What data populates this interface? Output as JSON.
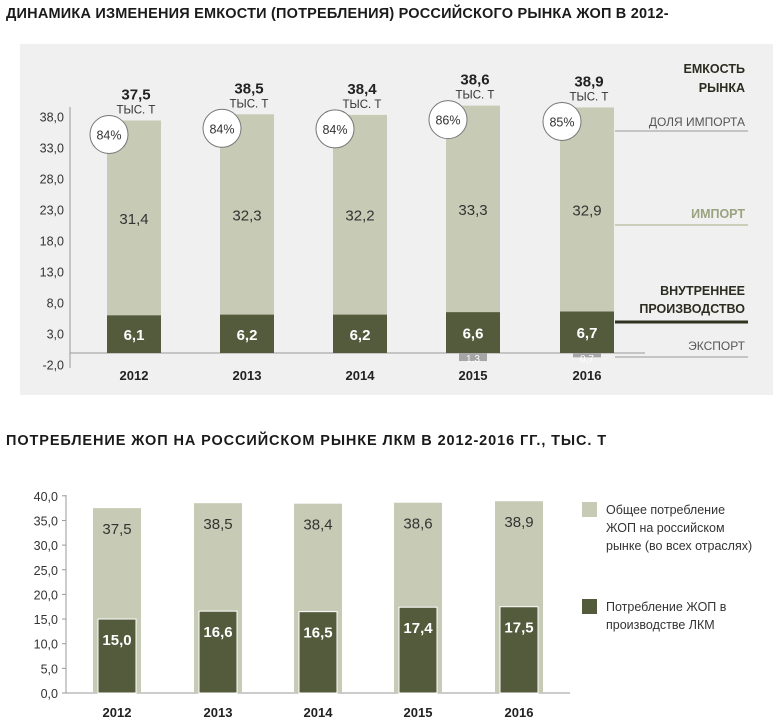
{
  "chart_data": [
    {
      "type": "bar",
      "title": "ДИНАМИКА ИЗМЕНЕНИЯ ЕМКОСТИ (ПОТРЕБЛЕНИЯ) РОССИЙСКОГО РЫНКА ЖОП В 2012-",
      "categories": [
        "2012",
        "2013",
        "2014",
        "2015",
        "2016"
      ],
      "yticks": [
        "38,0",
        "33,0",
        "28,0",
        "23,0",
        "18,0",
        "13,0",
        "8,0",
        "3,0",
        "-2,0"
      ],
      "ylim": [
        -2,
        40
      ],
      "stacked": true,
      "series": [
        {
          "name": "ВНУТРЕННЕЕ ПРОИЗВОДСТВО",
          "values": [
            6.1,
            6.2,
            6.2,
            6.6,
            6.7
          ],
          "labels": [
            "6,1",
            "6,2",
            "6,2",
            "6,6",
            "6,7"
          ]
        },
        {
          "name": "ИМПОРТ",
          "values": [
            31.4,
            32.3,
            32.2,
            33.3,
            32.9
          ],
          "labels": [
            "31,4",
            "32,3",
            "32,2",
            "33,3",
            "32,9"
          ]
        },
        {
          "name": "ЭКСПОРТ",
          "values": [
            0,
            0,
            0,
            -1.3,
            -0.7
          ],
          "labels": [
            "",
            "",
            "",
            "1,3",
            "0,7"
          ]
        }
      ],
      "totals": [
        "37,5",
        "38,5",
        "38,4",
        "38,6",
        "38,9"
      ],
      "total_unit": "ТЫС. Т",
      "import_share": [
        "84%",
        "84%",
        "84%",
        "86%",
        "85%"
      ],
      "labels": {
        "capacity": [
          "ЕМКОСТЬ",
          "РЫНКА"
        ],
        "import_share": "ДОЛЯ ИМПОРТА",
        "import": "ИМПОРТ",
        "domestic": [
          "ВНУТРЕННЕЕ",
          "ПРОИЗВОДСТВО"
        ],
        "export": "ЭКСПОРТ"
      },
      "colors": {
        "domestic": "#545a3c",
        "import": "#c7cab4",
        "export": "#a6a6a6"
      }
    },
    {
      "type": "bar",
      "title": "ПОТРЕБЛЕНИЕ  ЖОП  НА  РОССИЙСКОМ  РЫНКЕ  ЛКМ  В 2012-2016 ГГ., ТЫС. Т",
      "categories": [
        "2012",
        "2013",
        "2014",
        "2015",
        "2016"
      ],
      "yticks": [
        "40,0",
        "35,0",
        "30,0",
        "25,0",
        "20,0",
        "15,0",
        "10,0",
        "5,0",
        "0,0"
      ],
      "ylim": [
        0,
        40
      ],
      "series": [
        {
          "name": "Общее потребление ЖОП на российском рынке (во всех отраслях)",
          "legend_lines": [
            "Общее потребление",
            "ЖОП на российском",
            "рынке (во всех отраслях)"
          ],
          "values": [
            37.5,
            38.5,
            38.4,
            38.6,
            38.9
          ],
          "labels": [
            "37,5",
            "38,5",
            "38,4",
            "38,6",
            "38,9"
          ]
        },
        {
          "name": "Потребление ЖОП в производстве ЛКМ",
          "legend_lines": [
            "Потребление ЖОП в",
            "производстве ЛКМ"
          ],
          "values": [
            15.0,
            16.6,
            16.5,
            17.4,
            17.5
          ],
          "labels": [
            "15,0",
            "16,6",
            "16,5",
            "17,4",
            "17,5"
          ]
        }
      ],
      "colors": {
        "total": "#c7cab4",
        "lkm": "#545a3c"
      }
    }
  ]
}
